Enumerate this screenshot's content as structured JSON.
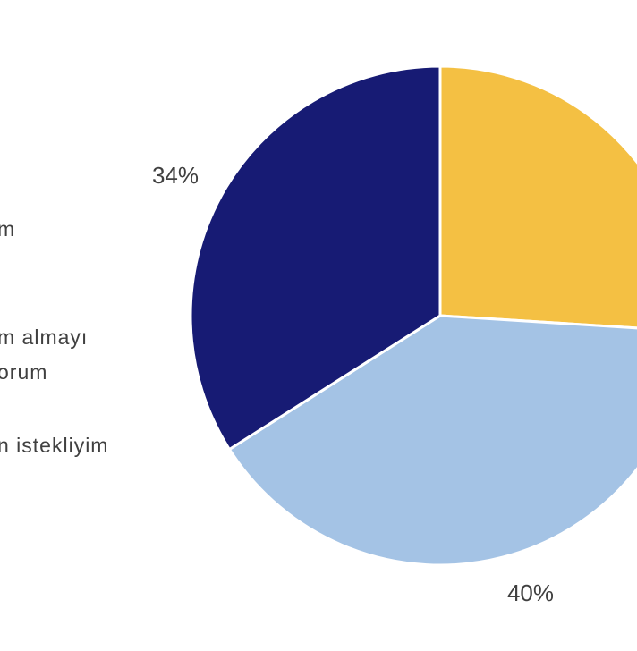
{
  "chart_data": {
    "type": "pie",
    "slices": [
      {
        "label": "",
        "value": 26,
        "color": "#F4C043"
      },
      {
        "label": "",
        "value": 40,
        "color": "#A4C3E5"
      },
      {
        "label": "",
        "value": 34,
        "color": "#171B74"
      }
    ],
    "data_labels": [
      "",
      "40%",
      "34%"
    ],
    "legend": {
      "placement": "left",
      "entries": [
        "m",
        "m almayı",
        "orum",
        "n istekliyim"
      ]
    }
  }
}
